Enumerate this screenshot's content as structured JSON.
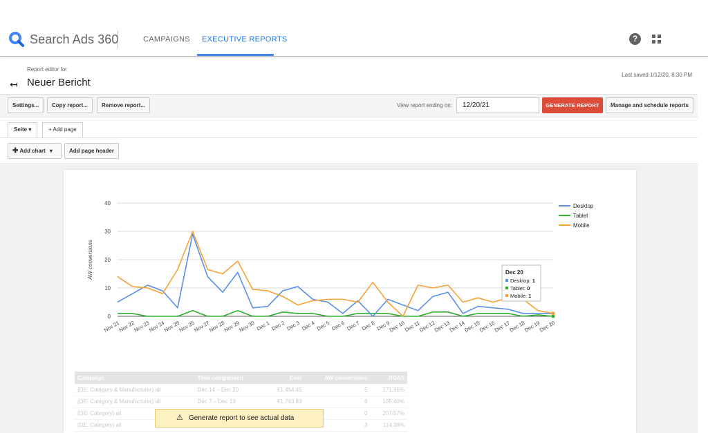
{
  "header": {
    "app_name": "Search Ads 360",
    "tabs": [
      {
        "label": "CAMPAIGNS",
        "active": false
      },
      {
        "label": "EXECUTIVE REPORTS",
        "active": true
      }
    ],
    "help_icon": "help-circle-icon",
    "apps_icon": "apps-grid-icon"
  },
  "report": {
    "editor_for": "Report editor for",
    "title": "Neuer Bericht",
    "last_saved": "Last saved 1/12/20, 8:30 PM"
  },
  "toolbar": {
    "settings": "Settings...",
    "copy": "Copy report...",
    "remove": "Remove report...",
    "view_label": "View report ending on:",
    "date_value": "12/20/21",
    "generate": "GENERATE REPORT",
    "manage": "Manage and schedule reports"
  },
  "pages": {
    "active_tab": "Seite",
    "add_page": "+ Add page",
    "add_chart": "Add chart",
    "add_header": "Add page header"
  },
  "chart_data": {
    "type": "line",
    "ylabel": "AW conversions",
    "ylim": [
      0,
      40
    ],
    "yticks": [
      0,
      10,
      20,
      30,
      40
    ],
    "x": [
      "Nov 21",
      "Nov 22",
      "Nov 23",
      "Nov 24",
      "Nov 25",
      "Nov 26",
      "Nov 27",
      "Nov 28",
      "Nov 29",
      "Nov 30",
      "Dec 1",
      "Dec 2",
      "Dec 3",
      "Dec 4",
      "Dec 5",
      "Dec 6",
      "Dec 7",
      "Dec 8",
      "Dec 9",
      "Dec 10",
      "Dec 11",
      "Dec 12",
      "Dec 13",
      "Dec 14",
      "Dec 15",
      "Dec 16",
      "Dec 17",
      "Dec 18",
      "Dec 19",
      "Dec 20"
    ],
    "series": [
      {
        "name": "Desktop",
        "color": "#5a8fe6",
        "values": [
          5,
          8,
          11,
          9,
          3,
          29,
          14,
          8.5,
          15.5,
          3,
          3.5,
          9,
          10.5,
          6,
          5,
          1,
          5.5,
          0,
          6,
          4,
          2,
          7,
          8.5,
          1,
          3.5,
          3,
          2.5,
          1,
          1,
          1
        ]
      },
      {
        "name": "Tablet",
        "color": "#2db12d",
        "values": [
          1,
          1,
          0,
          0,
          0,
          2,
          0,
          0,
          2,
          0,
          0,
          1.5,
          1,
          1,
          0,
          0,
          1,
          1,
          1,
          0,
          0,
          1.5,
          1.5,
          0,
          1,
          1,
          1,
          0,
          0.5,
          0
        ]
      },
      {
        "name": "Mobile",
        "color": "#f6a236",
        "values": [
          14,
          10.5,
          10,
          8,
          16.5,
          30,
          16.5,
          15,
          19.5,
          9.5,
          9,
          7,
          4,
          5.5,
          6,
          6,
          5,
          12,
          5,
          0,
          11,
          10,
          11,
          5,
          6.5,
          5,
          6.5,
          6,
          2,
          1
        ]
      }
    ],
    "legend_position": "right",
    "grid": true,
    "tooltip": {
      "title": "Dec 20",
      "rows": [
        {
          "label": "Desktop:",
          "value": "1",
          "color": "#5a8fe6"
        },
        {
          "label": "Tablet:",
          "value": "0",
          "color": "#2db12d"
        },
        {
          "label": "Mobile:",
          "value": "1",
          "color": "#f6a236"
        }
      ]
    }
  },
  "table": {
    "headers": [
      "Campaign",
      "Time comparison",
      "Cost",
      "AW conversions",
      "ROAS"
    ],
    "rows": [
      [
        "(DE: Category & Manufacturer) all",
        "Dec 14 – Dec 20",
        "€1,454.45",
        "5",
        "171.96%"
      ],
      [
        "(DE: Category & Manufacturer) all",
        "Dec 7 – Dec 13",
        "€1,763.83",
        "6",
        "105.40%"
      ],
      [
        "(DE: Category) all",
        "",
        "",
        "0",
        "207.57%"
      ],
      [
        "(DE: Category) all",
        "",
        "",
        "3",
        "114.38%"
      ]
    ]
  },
  "notice": {
    "text": "Generate report to see actual data",
    "icon": "warning-icon"
  }
}
